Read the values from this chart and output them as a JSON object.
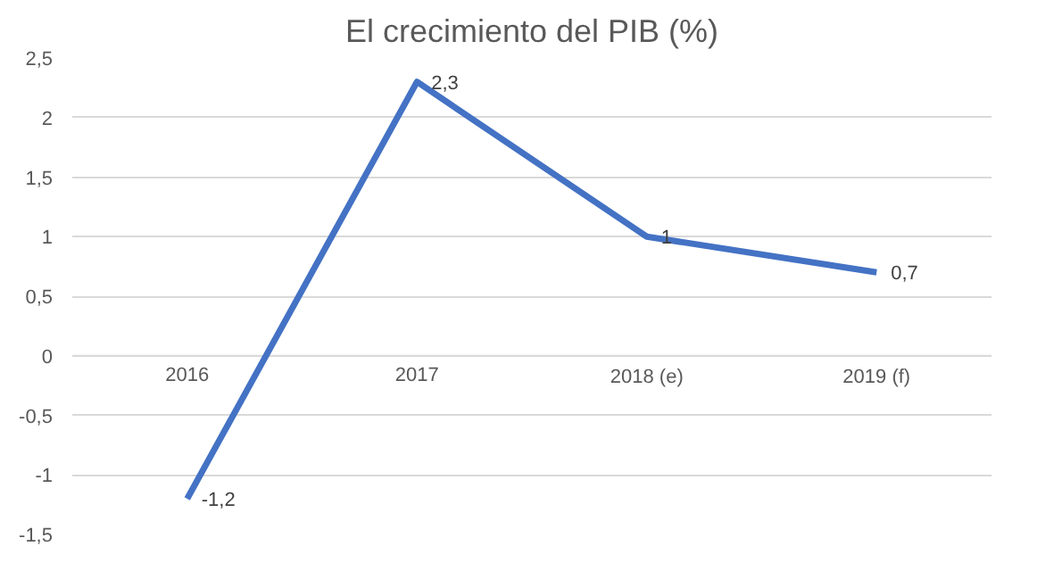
{
  "chart_data": {
    "type": "line",
    "title": "El crecimiento del PIB (%)",
    "categories": [
      "2016",
      "2017",
      "2018 (e)",
      "2019 (f)"
    ],
    "values": [
      -1.2,
      2.3,
      1,
      0.7
    ],
    "color": "#4472c4",
    "data_labels": true,
    "value_labels": [
      "-1,2",
      "2,3",
      "1",
      "0,7"
    ],
    "ylim": [
      -1.5,
      2.5
    ],
    "yticks": [
      {
        "value": -1.5,
        "label": "-1,5"
      },
      -1,
      {
        "value": -0.5,
        "label": "-0,5"
      },
      0,
      {
        "value": 0.5,
        "label": "0,5"
      },
      1,
      {
        "value": 1.5,
        "label": "1,5"
      },
      2,
      {
        "value": 2.5,
        "label": "2,5"
      }
    ],
    "grid": "y",
    "marker": "none",
    "line_style": "solid"
  }
}
